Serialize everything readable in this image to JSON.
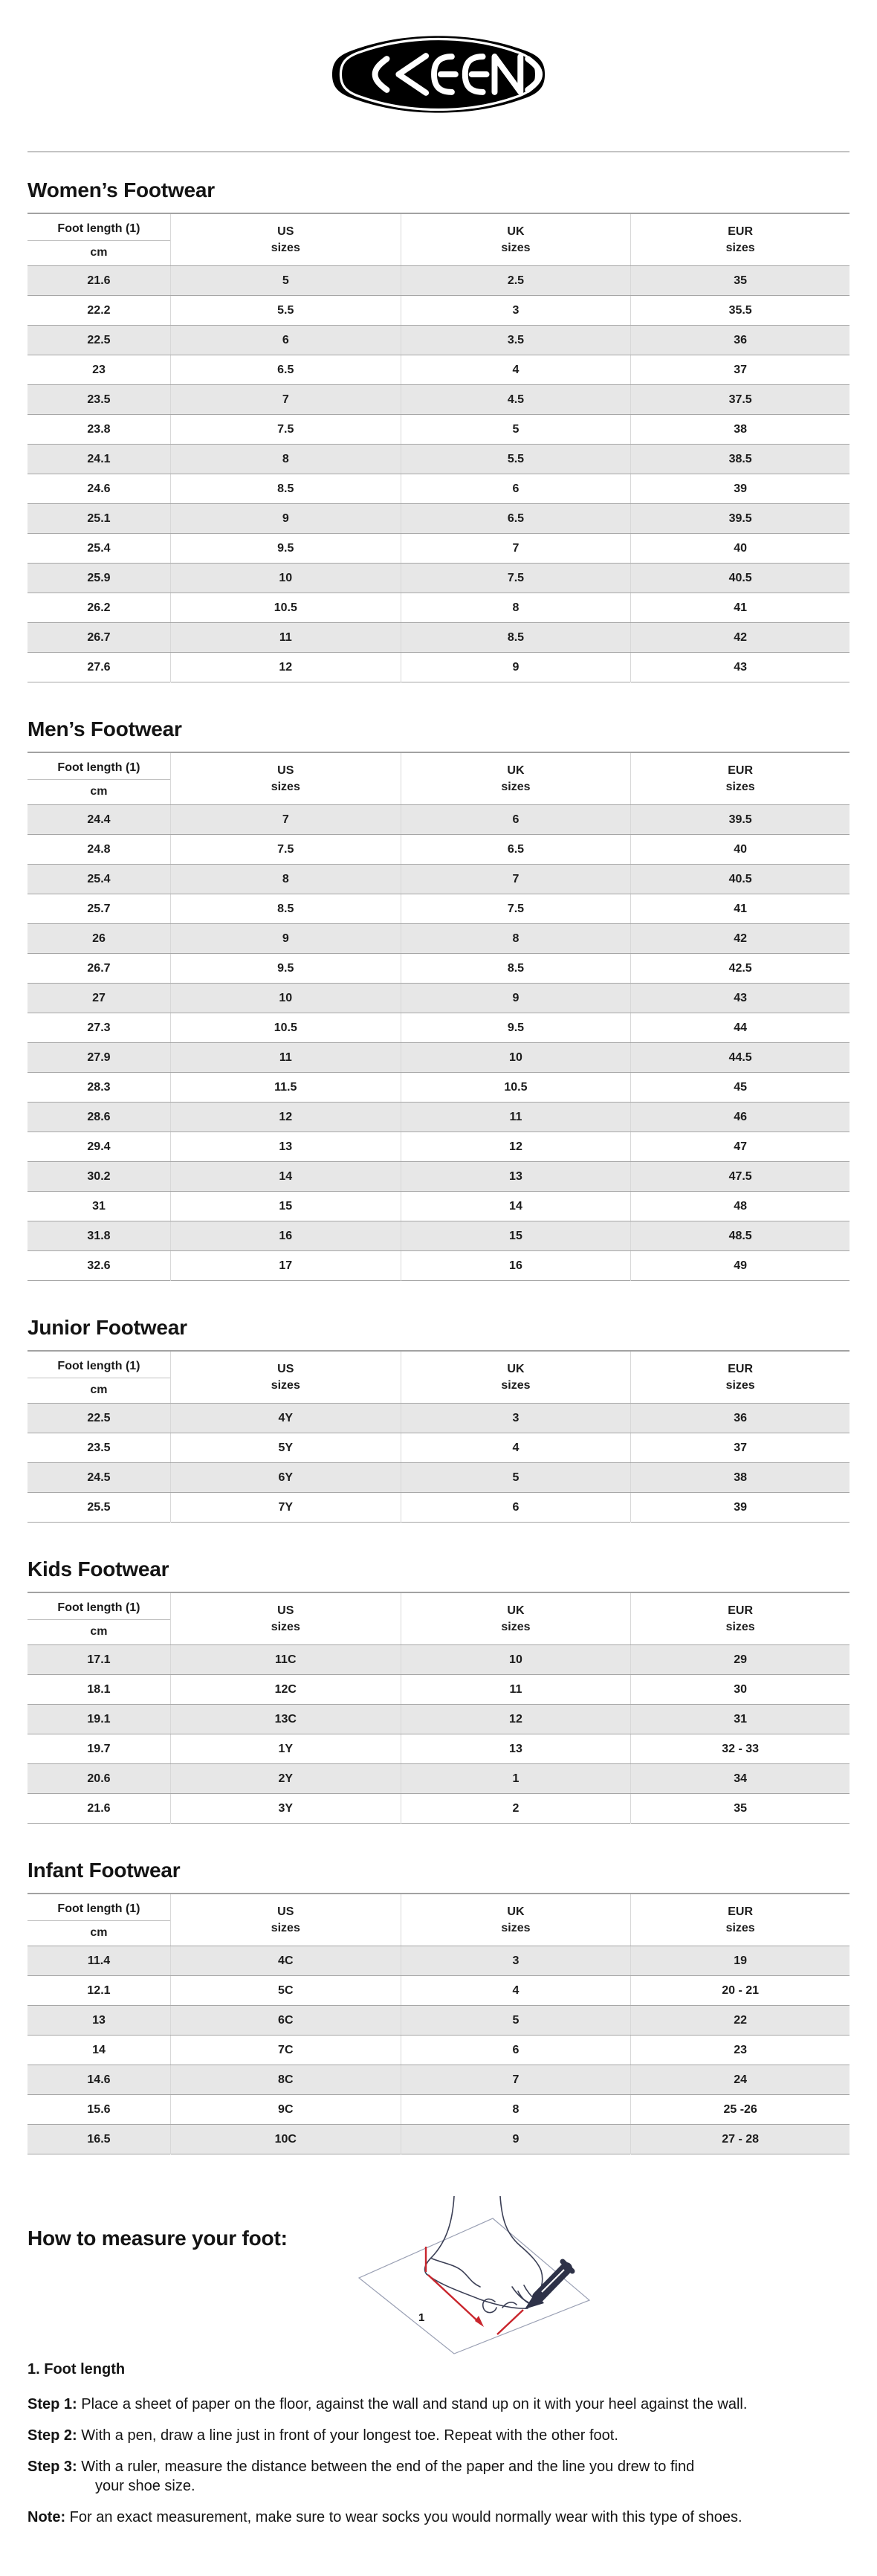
{
  "logo": {
    "brand": "KEEN"
  },
  "table_header": {
    "foot_length": "Foot length (1)",
    "unit": "cm",
    "us": "US",
    "uk": "UK",
    "eur": "EUR",
    "sizes": "sizes"
  },
  "sections": [
    {
      "title": "Women’s Footwear",
      "rows": [
        [
          "21.6",
          "5",
          "2.5",
          "35"
        ],
        [
          "22.2",
          "5.5",
          "3",
          "35.5"
        ],
        [
          "22.5",
          "6",
          "3.5",
          "36"
        ],
        [
          "23",
          "6.5",
          "4",
          "37"
        ],
        [
          "23.5",
          "7",
          "4.5",
          "37.5"
        ],
        [
          "23.8",
          "7.5",
          "5",
          "38"
        ],
        [
          "24.1",
          "8",
          "5.5",
          "38.5"
        ],
        [
          "24.6",
          "8.5",
          "6",
          "39"
        ],
        [
          "25.1",
          "9",
          "6.5",
          "39.5"
        ],
        [
          "25.4",
          "9.5",
          "7",
          "40"
        ],
        [
          "25.9",
          "10",
          "7.5",
          "40.5"
        ],
        [
          "26.2",
          "10.5",
          "8",
          "41"
        ],
        [
          "26.7",
          "11",
          "8.5",
          "42"
        ],
        [
          "27.6",
          "12",
          "9",
          "43"
        ]
      ]
    },
    {
      "title": "Men’s Footwear",
      "rows": [
        [
          "24.4",
          "7",
          "6",
          "39.5"
        ],
        [
          "24.8",
          "7.5",
          "6.5",
          "40"
        ],
        [
          "25.4",
          "8",
          "7",
          "40.5"
        ],
        [
          "25.7",
          "8.5",
          "7.5",
          "41"
        ],
        [
          "26",
          "9",
          "8",
          "42"
        ],
        [
          "26.7",
          "9.5",
          "8.5",
          "42.5"
        ],
        [
          "27",
          "10",
          "9",
          "43"
        ],
        [
          "27.3",
          "10.5",
          "9.5",
          "44"
        ],
        [
          "27.9",
          "11",
          "10",
          "44.5"
        ],
        [
          "28.3",
          "11.5",
          "10.5",
          "45"
        ],
        [
          "28.6",
          "12",
          "11",
          "46"
        ],
        [
          "29.4",
          "13",
          "12",
          "47"
        ],
        [
          "30.2",
          "14",
          "13",
          "47.5"
        ],
        [
          "31",
          "15",
          "14",
          "48"
        ],
        [
          "31.8",
          "16",
          "15",
          "48.5"
        ],
        [
          "32.6",
          "17",
          "16",
          "49"
        ]
      ]
    },
    {
      "title": "Junior Footwear",
      "rows": [
        [
          "22.5",
          "4Y",
          "3",
          "36"
        ],
        [
          "23.5",
          "5Y",
          "4",
          "37"
        ],
        [
          "24.5",
          "6Y",
          "5",
          "38"
        ],
        [
          "25.5",
          "7Y",
          "6",
          "39"
        ]
      ]
    },
    {
      "title": "Kids Footwear",
      "rows": [
        [
          "17.1",
          "11C",
          "10",
          "29"
        ],
        [
          "18.1",
          "12C",
          "11",
          "30"
        ],
        [
          "19.1",
          "13C",
          "12",
          "31"
        ],
        [
          "19.7",
          "1Y",
          "13",
          "32 - 33"
        ],
        [
          "20.6",
          "2Y",
          "1",
          "34"
        ],
        [
          "21.6",
          "3Y",
          "2",
          "35"
        ]
      ]
    },
    {
      "title": "Infant Footwear",
      "rows": [
        [
          "11.4",
          "4C",
          "3",
          "19"
        ],
        [
          "12.1",
          "5C",
          "4",
          "20 - 21"
        ],
        [
          "13",
          "6C",
          "5",
          "22"
        ],
        [
          "14",
          "7C",
          "6",
          "23"
        ],
        [
          "14.6",
          "8C",
          "7",
          "24"
        ],
        [
          "15.6",
          "9C",
          "8",
          "25 -26"
        ],
        [
          "16.5",
          "10C",
          "9",
          "27 - 28"
        ]
      ]
    }
  ],
  "measure": {
    "title": "How to measure your foot:",
    "diagram_label": "1",
    "subtitle": "1. Foot length",
    "steps": [
      {
        "label": "Step 1:",
        "text": "Place a sheet of paper on the floor, against the wall and stand up on it with your heel against the wall."
      },
      {
        "label": "Step 2:",
        "text": "With a pen, draw a line just in front of your longest toe. Repeat with the other foot."
      },
      {
        "label": "Step 3:",
        "text": "With a ruler, measure the distance between the end of the paper and the line you drew to find",
        "text2": "your shoe size."
      },
      {
        "label": "Note:",
        "text": "For an exact measurement, make sure to wear socks you would normally wear with this type of shoes."
      }
    ]
  },
  "colors": {
    "row_stripe": "#e7e7e7",
    "table_line": "#a6a6a6",
    "accent_red": "#c9252c",
    "sketch_ink": "#3b3f55"
  }
}
